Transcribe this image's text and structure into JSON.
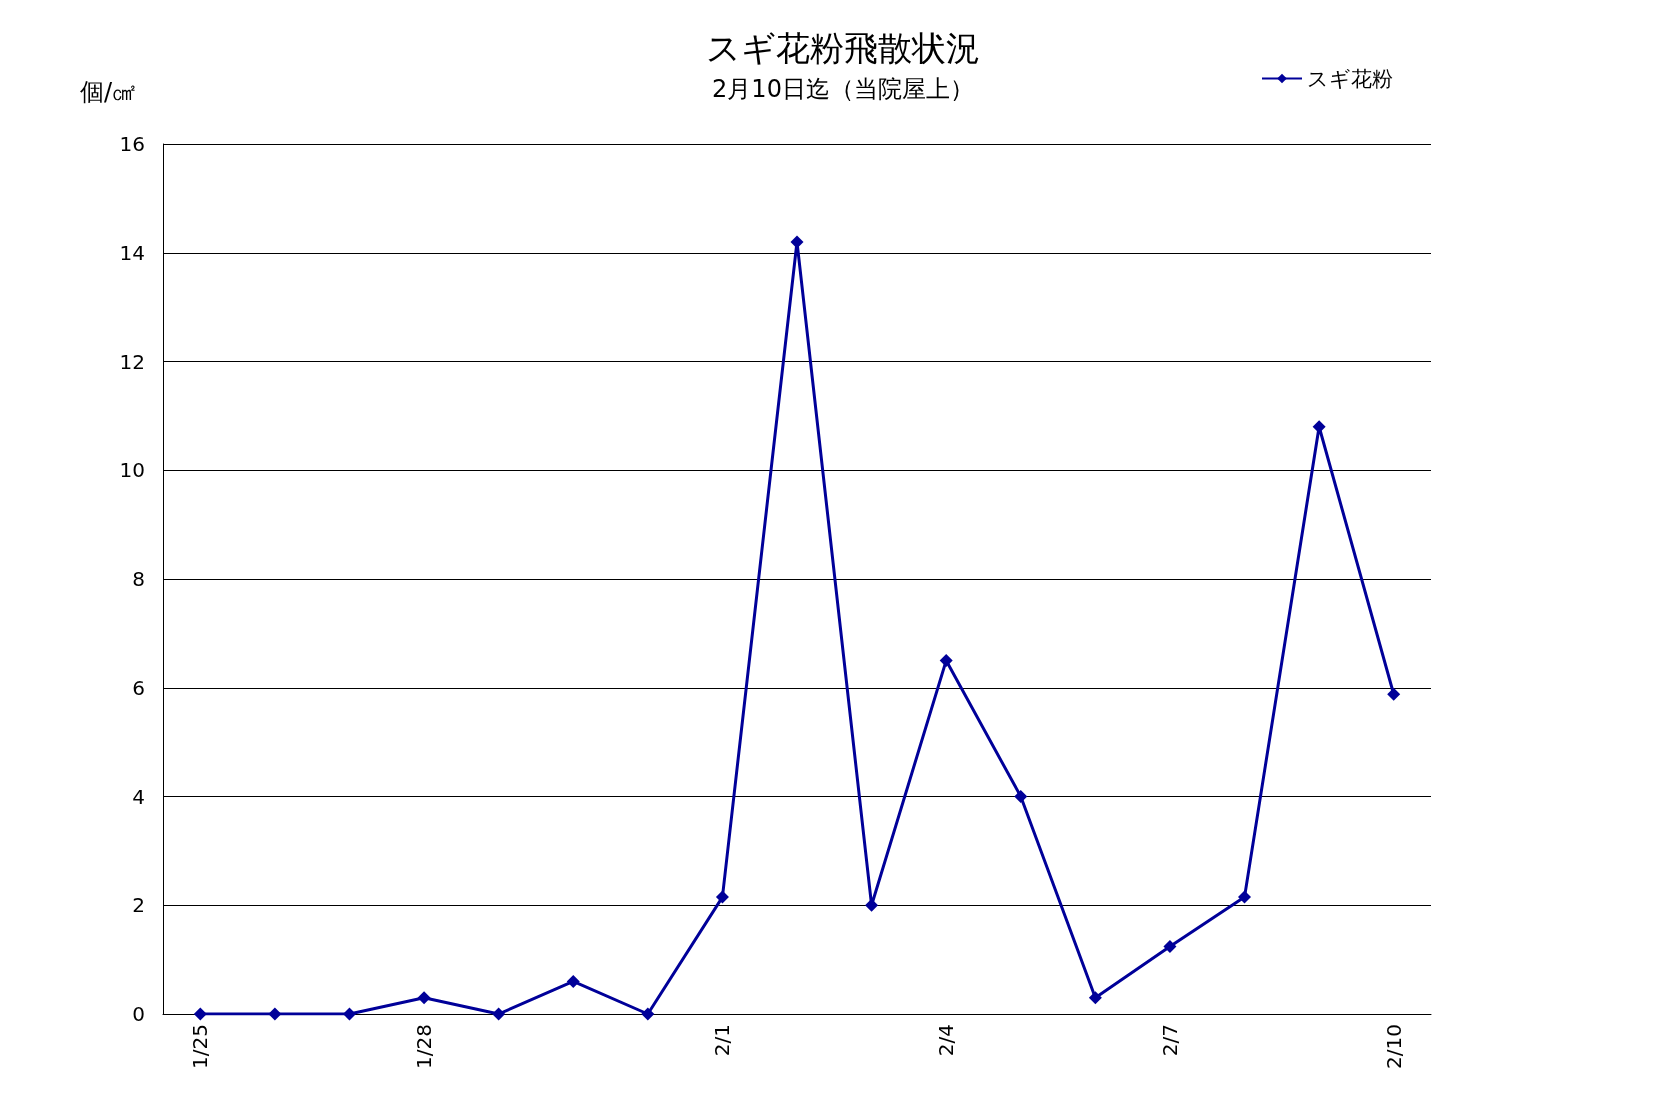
{
  "chart_data": {
    "type": "line",
    "title": "スギ花粉飛散状況",
    "subtitle": "2月10日迄（当院屋上）",
    "ylabel": "個/㎠",
    "categories": [
      "1/25",
      null,
      null,
      "1/28",
      null,
      null,
      null,
      "2/1",
      null,
      null,
      "2/4",
      null,
      null,
      "2/7",
      null,
      null,
      "2/10"
    ],
    "series": [
      {
        "name": "スギ花粉",
        "color": "#000099",
        "values": [
          0,
          0,
          0,
          0.3,
          0,
          0.6,
          0,
          2.15,
          14.2,
          2.0,
          6.5,
          4.0,
          0.3,
          1.24,
          2.15,
          10.8,
          5.88
        ]
      }
    ],
    "ylim": [
      0,
      16
    ],
    "yticks": [
      0,
      2,
      4,
      6,
      8,
      10,
      12,
      14,
      16
    ],
    "grid": "y",
    "legend": "top right",
    "marker": "diamond",
    "line_style": "solid"
  }
}
